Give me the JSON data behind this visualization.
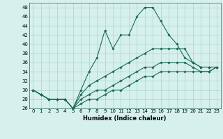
{
  "xlabel": "Humidex (Indice chaleur)",
  "x": [
    0,
    1,
    2,
    3,
    4,
    5,
    6,
    7,
    8,
    9,
    10,
    11,
    12,
    13,
    14,
    15,
    16,
    17,
    18,
    19,
    20,
    21,
    22,
    23
  ],
  "series": [
    [
      30,
      29,
      28,
      28,
      28,
      26,
      30,
      34,
      37,
      43,
      39,
      42,
      42,
      46,
      48,
      48,
      45,
      42,
      40,
      37,
      36,
      35,
      35,
      35
    ],
    [
      30,
      29,
      28,
      28,
      28,
      26,
      29,
      31,
      32,
      33,
      34,
      35,
      36,
      37,
      38,
      39,
      39,
      39,
      39,
      39,
      36,
      35,
      35,
      35
    ],
    [
      30,
      29,
      28,
      28,
      28,
      26,
      28,
      29,
      30,
      30,
      31,
      32,
      33,
      34,
      35,
      35,
      36,
      36,
      36,
      36,
      35,
      34,
      34,
      35
    ],
    [
      30,
      29,
      28,
      28,
      28,
      26,
      27,
      28,
      28,
      29,
      30,
      30,
      31,
      32,
      33,
      33,
      34,
      34,
      34,
      34,
      34,
      34,
      34,
      35
    ]
  ],
  "line_color": "#1a6b5a",
  "bg_color": "#d6f0ec",
  "grid_color": "#a8d5cc",
  "ylim": [
    26,
    49
  ],
  "yticks": [
    26,
    28,
    30,
    32,
    34,
    36,
    38,
    40,
    42,
    44,
    46,
    48
  ],
  "marker": "D",
  "markersize": 1.8,
  "linewidth": 0.8,
  "tick_fontsize": 5.0,
  "xlabel_fontsize": 6.0
}
